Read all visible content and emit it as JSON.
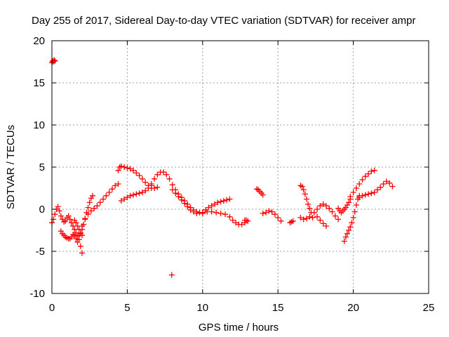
{
  "chart_data": {
    "type": "scatter",
    "title": "Day 255 of 2017, Sidereal Day-to-day VTEC variation (SDTVAR) for receiver ampr",
    "xlabel": "GPS time / hours",
    "ylabel": "SDTVAR / TECUs",
    "xlim": [
      0,
      25
    ],
    "ylim": [
      -10,
      20
    ],
    "xticks": [
      0,
      5,
      10,
      15,
      20,
      25
    ],
    "yticks": [
      -10,
      -5,
      0,
      5,
      10,
      15,
      20
    ],
    "xtick_labels": [
      "0",
      "5",
      "10",
      "15",
      "20",
      "25"
    ],
    "ytick_labels": [
      "-10",
      "-5",
      "0",
      "5",
      "10",
      "15",
      "20"
    ],
    "grid": true,
    "marker": "+",
    "color": "#ff0000",
    "series": [
      {
        "name": "SDTVAR",
        "x": [
          0.0,
          0.05,
          0.1,
          0.15,
          0.2,
          0.0,
          0.1,
          0.2,
          0.3,
          0.4,
          0.5,
          0.6,
          0.7,
          0.8,
          0.9,
          1.0,
          1.1,
          1.2,
          1.3,
          1.4,
          1.5,
          1.6,
          1.7,
          1.8,
          1.9,
          2.0,
          0.6,
          0.7,
          0.8,
          0.9,
          1.0,
          1.1,
          1.2,
          1.3,
          1.4,
          1.5,
          1.6,
          1.7,
          1.5,
          1.6,
          1.7,
          1.8,
          1.9,
          2.0,
          1.8,
          1.9,
          2.0,
          2.1,
          2.2,
          2.3,
          2.4,
          2.5,
          2.6,
          2.7,
          2.0,
          2.2,
          2.4,
          2.6,
          2.8,
          3.0,
          3.2,
          3.4,
          3.6,
          3.8,
          4.0,
          4.2,
          4.4,
          4.4,
          4.5,
          4.6,
          4.8,
          5.0,
          5.2,
          5.4,
          5.6,
          5.8,
          6.0,
          6.2,
          6.4,
          6.6,
          6.8,
          7.0,
          4.6,
          4.8,
          5.0,
          5.2,
          5.4,
          5.6,
          5.8,
          6.0,
          6.2,
          6.4,
          6.6,
          6.6,
          6.8,
          7.0,
          7.2,
          7.4,
          7.6,
          7.8,
          8.0,
          8.2,
          8.4,
          8.6,
          8.8,
          9.0,
          9.2,
          9.4,
          9.6,
          9.8,
          10.0,
          8.0,
          8.2,
          8.4,
          8.6,
          8.8,
          9.0,
          9.2,
          9.4,
          9.6,
          10.0,
          10.2,
          10.4,
          10.6,
          10.8,
          11.0,
          11.2,
          11.4,
          11.6,
          11.8,
          10.0,
          10.3,
          10.6,
          10.9,
          11.2,
          11.5,
          11.8,
          12.0,
          12.2,
          12.4,
          12.6,
          12.8,
          12.8,
          12.9,
          13.0,
          7.95,
          13.6,
          13.7,
          13.8,
          13.9,
          14.0,
          14.0,
          14.2,
          14.4,
          14.6,
          14.8,
          15.0,
          15.2,
          15.8,
          15.9,
          16.0,
          16.5,
          16.6,
          16.7,
          16.8,
          16.9,
          17.0,
          17.1,
          17.2,
          16.5,
          16.7,
          16.9,
          17.1,
          17.3,
          17.4,
          17.6,
          17.8,
          18.0,
          18.2,
          18.4,
          18.6,
          18.8,
          19.0,
          17.6,
          17.8,
          18.0,
          18.2,
          19.0,
          19.1,
          19.2,
          19.3,
          19.4,
          19.5,
          19.6,
          19.7,
          19.8,
          19.4,
          19.5,
          19.6,
          19.7,
          19.8,
          19.9,
          20.0,
          20.1,
          20.2,
          20.3,
          20.4,
          19.8,
          20.0,
          20.2,
          20.4,
          20.6,
          20.8,
          21.0,
          21.2,
          21.4,
          20.4,
          20.6,
          20.8,
          21.0,
          21.2,
          21.4,
          21.6,
          21.8,
          22.0,
          22.2,
          22.4,
          22.6
        ],
        "y": [
          17.4,
          17.6,
          17.5,
          17.7,
          17.6,
          -1.6,
          -1.2,
          -0.6,
          0.0,
          0.3,
          -0.2,
          -0.8,
          -1.2,
          -1.5,
          -1.4,
          -1.0,
          -0.8,
          -1.2,
          -1.6,
          -2.0,
          -2.4,
          -2.8,
          -3.2,
          -3.6,
          -4.4,
          -5.2,
          -2.6,
          -2.9,
          -3.1,
          -3.3,
          -3.4,
          -3.5,
          -3.5,
          -3.3,
          -3.0,
          -3.1,
          -3.5,
          -3.9,
          -1.3,
          -1.6,
          -2.0,
          -2.4,
          -2.9,
          -3.1,
          -3.1,
          -2.8,
          -2.4,
          -1.8,
          -1.1,
          -0.4,
          0.2,
          0.8,
          1.3,
          1.6,
          -2.0,
          -1.2,
          -0.6,
          -0.2,
          0.1,
          0.4,
          0.8,
          1.2,
          1.6,
          2.0,
          2.4,
          2.8,
          3.0,
          4.6,
          5.0,
          5.1,
          5.0,
          4.9,
          4.8,
          4.6,
          4.3,
          4.0,
          3.6,
          3.2,
          2.8,
          2.5,
          2.5,
          2.6,
          1.0,
          1.2,
          1.4,
          1.6,
          1.7,
          1.8,
          1.9,
          2.0,
          2.2,
          2.5,
          2.8,
          3.0,
          3.6,
          4.1,
          4.4,
          4.4,
          4.1,
          3.6,
          2.9,
          2.3,
          1.8,
          1.4,
          1.0,
          0.6,
          0.2,
          -0.1,
          -0.3,
          -0.4,
          -0.5,
          2.3,
          1.9,
          1.5,
          1.1,
          0.7,
          0.3,
          -0.1,
          -0.3,
          -0.5,
          -0.4,
          -0.1,
          0.2,
          0.4,
          0.6,
          0.8,
          0.9,
          1.0,
          1.1,
          1.2,
          -0.4,
          -0.3,
          -0.3,
          -0.4,
          -0.5,
          -0.6,
          -0.9,
          -1.3,
          -1.6,
          -1.8,
          -1.8,
          -1.6,
          -1.3,
          -1.3,
          -1.4,
          -7.8,
          2.4,
          2.3,
          2.1,
          1.9,
          1.7,
          -0.5,
          -0.4,
          -0.2,
          -0.3,
          -0.6,
          -1.0,
          -1.4,
          -1.6,
          -1.5,
          -1.4,
          2.8,
          2.7,
          2.3,
          1.8,
          1.2,
          0.6,
          0.1,
          -0.4,
          -1.0,
          -1.2,
          -1.1,
          -0.9,
          -1.0,
          -0.4,
          0.0,
          0.4,
          0.6,
          0.4,
          0.1,
          -0.3,
          -0.8,
          -1.2,
          -0.9,
          -1.3,
          -1.7,
          -2.0,
          0.1,
          -0.2,
          -0.4,
          -0.2,
          0.0,
          0.2,
          0.5,
          0.8,
          1.2,
          -3.8,
          -3.3,
          -2.9,
          -2.5,
          -2.1,
          -1.6,
          -1.0,
          -0.3,
          0.5,
          1.2,
          1.6,
          1.5,
          2.0,
          2.5,
          3.0,
          3.5,
          3.9,
          4.2,
          4.5,
          4.6,
          1.4,
          1.6,
          1.7,
          1.8,
          1.9,
          2.0,
          2.3,
          2.6,
          3.0,
          3.3,
          3.1,
          2.7
        ]
      }
    ]
  }
}
